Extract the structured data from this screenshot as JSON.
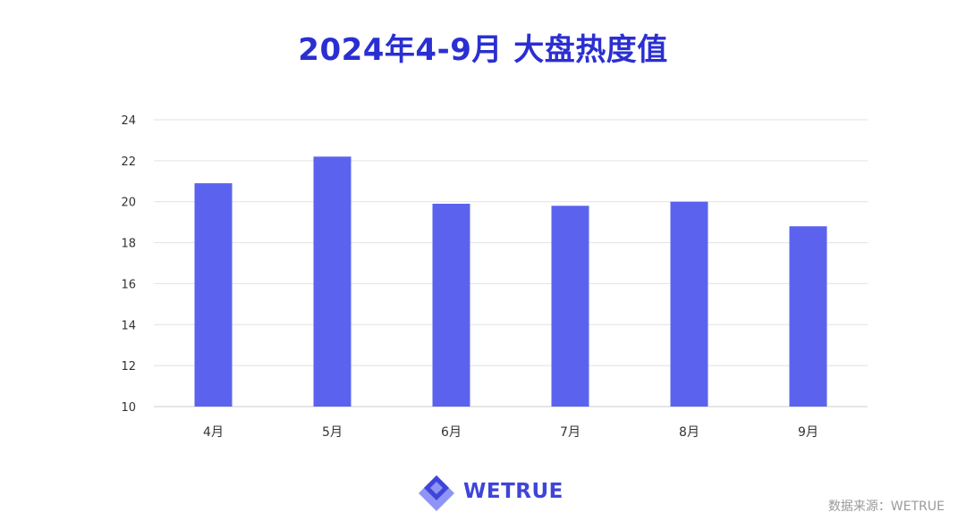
{
  "colors": {
    "title": "#2b2fd1",
    "bar": "#5b63ee",
    "grid": "#e2e2e2",
    "axis": "#cccccc",
    "logo_dark": "#3f45d8",
    "logo_light": "#8f95f4",
    "source": "#9a9a9a"
  },
  "chart_data": {
    "type": "bar",
    "title": "2024年4-9月 大盘热度值",
    "categories": [
      "4月",
      "5月",
      "6月",
      "7月",
      "8月",
      "9月"
    ],
    "values": [
      20.9,
      22.2,
      19.9,
      19.8,
      20.0,
      18.8
    ],
    "ylim": [
      10,
      24
    ],
    "yticks": [
      10,
      12,
      14,
      16,
      18,
      20,
      22,
      24
    ],
    "grid": true,
    "legend": "none"
  },
  "footer": {
    "logo_text": "WETRUE",
    "logo_icon": "diamond-logo-icon",
    "source": "数据来源：WETRUE"
  }
}
